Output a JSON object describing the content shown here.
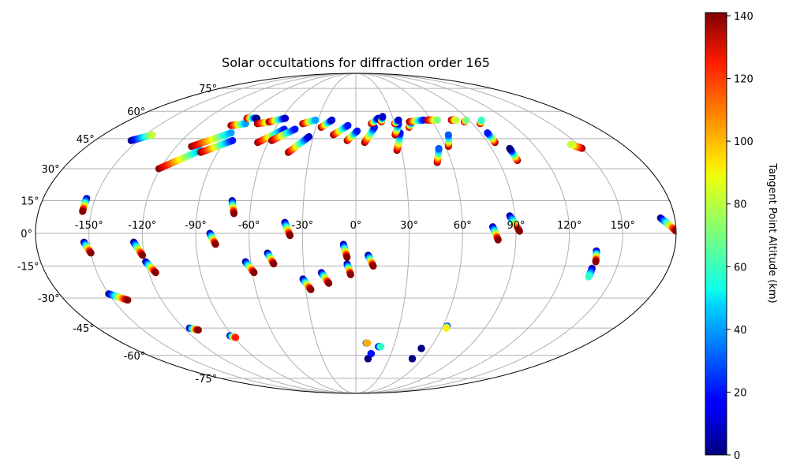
{
  "chart_data": {
    "type": "scatter",
    "projection": "mollweide",
    "title": "Solar occultations for diffraction order 165",
    "colorbar": {
      "label": "Tangent Point Altitude (km)",
      "range": [
        0,
        141
      ],
      "ticks": [
        "0",
        "20",
        "40",
        "60",
        "80",
        "100",
        "120",
        "140"
      ],
      "tick_values": [
        0,
        20,
        40,
        60,
        80,
        100,
        120,
        140
      ],
      "colormap": "jet"
    },
    "lon_ticks": [
      {
        "value": -150,
        "label": "-150°"
      },
      {
        "value": -120,
        "label": "-120°"
      },
      {
        "value": -90,
        "label": "-90°"
      },
      {
        "value": -60,
        "label": "-60°"
      },
      {
        "value": -30,
        "label": "-30°"
      },
      {
        "value": 0,
        "label": "0°"
      },
      {
        "value": 30,
        "label": "30°"
      },
      {
        "value": 60,
        "label": "60°"
      },
      {
        "value": 90,
        "label": "90°"
      },
      {
        "value": 120,
        "label": "120°"
      },
      {
        "value": 150,
        "label": "150°"
      }
    ],
    "lat_ticks": [
      {
        "value": 75,
        "label": "75°"
      },
      {
        "value": 60,
        "label": "60°"
      },
      {
        "value": 45,
        "label": "45°"
      },
      {
        "value": 30,
        "label": "30°"
      },
      {
        "value": 15,
        "label": "15°"
      },
      {
        "value": 0,
        "label": "0°"
      },
      {
        "value": -15,
        "label": "-15°"
      },
      {
        "value": -30,
        "label": "-30°"
      },
      {
        "value": -45,
        "label": "-45°"
      },
      {
        "value": -60,
        "label": "-60°"
      },
      {
        "value": -75,
        "label": "-75°"
      }
    ],
    "tracks": [
      {
        "start": [
          -155,
          44
        ],
        "end": [
          -145,
          47
        ],
        "alt": [
          0,
          80
        ]
      },
      {
        "start": [
          -121,
          30
        ],
        "end": [
          -102,
          39
        ],
        "alt": [
          140,
          40
        ]
      },
      {
        "start": [
          -110,
          41
        ],
        "end": [
          -90,
          48
        ],
        "alt": [
          140,
          40
        ]
      },
      {
        "start": [
          -101,
          38
        ],
        "end": [
          -85,
          44
        ],
        "alt": [
          140,
          20
        ]
      },
      {
        "start": [
          -95,
          52
        ],
        "end": [
          -85,
          53
        ],
        "alt": [
          140,
          40
        ]
      },
      {
        "start": [
          -88,
          56
        ],
        "end": [
          -80,
          56
        ],
        "alt": [
          140,
          0
        ]
      },
      {
        "start": [
          -76,
          53
        ],
        "end": [
          -67,
          54
        ],
        "alt": [
          140,
          70
        ]
      },
      {
        "start": [
          -68,
          54
        ],
        "end": [
          -57,
          56
        ],
        "alt": [
          140,
          10
        ]
      },
      {
        "start": [
          -67,
          43
        ],
        "end": [
          -53,
          50
        ],
        "alt": [
          140,
          20
        ]
      },
      {
        "start": [
          -58,
          44
        ],
        "end": [
          -45,
          50
        ],
        "alt": [
          140,
          20
        ]
      },
      {
        "start": [
          -44,
          38
        ],
        "end": [
          -33,
          46
        ],
        "alt": [
          140,
          10
        ]
      },
      {
        "start": [
          -41,
          53
        ],
        "end": [
          -32,
          55
        ],
        "alt": [
          140,
          40
        ]
      },
      {
        "start": [
          -26,
          51
        ],
        "end": [
          -19,
          55
        ],
        "alt": [
          140,
          10
        ]
      },
      {
        "start": [
          -16,
          47
        ],
        "end": [
          -6,
          52
        ],
        "alt": [
          140,
          20
        ]
      },
      {
        "start": [
          -6,
          44
        ],
        "end": [
          1,
          49
        ],
        "alt": [
          140,
          20
        ]
      },
      {
        "start": [
          6,
          43
        ],
        "end": [
          14,
          51
        ],
        "alt": [
          140,
          20
        ]
      },
      {
        "start": [
          12,
          53
        ],
        "end": [
          18,
          56
        ],
        "alt": [
          140,
          10
        ]
      },
      {
        "start": [
          20,
          54
        ],
        "end": [
          22,
          57
        ],
        "alt": [
          140,
          10
        ]
      },
      {
        "start": [
          27,
          39
        ],
        "end": [
          32,
          48
        ],
        "alt": [
          140,
          20
        ]
      },
      {
        "start": [
          28,
          47
        ],
        "end": [
          33,
          53
        ],
        "alt": [
          140,
          20
        ]
      },
      {
        "start": [
          30,
          53
        ],
        "end": [
          34,
          55
        ],
        "alt": [
          140,
          10
        ]
      },
      {
        "start": [
          40,
          51
        ],
        "end": [
          44,
          54
        ],
        "alt": [
          140,
          20
        ]
      },
      {
        "start": [
          42,
          54
        ],
        "end": [
          54,
          55
        ],
        "alt": [
          140,
          20
        ]
      },
      {
        "start": [
          57,
          55
        ],
        "end": [
          65,
          55
        ],
        "alt": [
          140,
          70
        ]
      },
      {
        "start": [
          51,
          33
        ],
        "end": [
          55,
          40
        ],
        "alt": [
          140,
          30
        ]
      },
      {
        "start": [
          62,
          41
        ],
        "end": [
          66,
          47
        ],
        "alt": [
          140,
          30
        ]
      },
      {
        "start": [
          76,
          55
        ],
        "end": [
          80,
          55
        ],
        "alt": [
          140,
          80
        ]
      },
      {
        "start": [
          85,
          54
        ],
        "end": [
          88,
          55
        ],
        "alt": [
          140,
          70
        ]
      },
      {
        "start": [
          96,
          53
        ],
        "end": [
          100,
          55
        ],
        "alt": [
          140,
          60
        ]
      },
      {
        "start": [
          95,
          43
        ],
        "end": [
          95,
          48
        ],
        "alt": [
          140,
          20
        ]
      },
      {
        "start": [
          102,
          34
        ],
        "end": [
          102,
          40
        ],
        "alt": [
          140,
          0
        ]
      },
      {
        "start": [
          150,
          40
        ],
        "end": [
          145,
          42
        ],
        "alt": [
          140,
          80
        ]
      },
      {
        "start": [
          -155,
          16
        ],
        "end": [
          -155,
          10
        ],
        "alt": [
          0,
          140
        ]
      },
      {
        "start": [
          -153,
          -4
        ],
        "end": [
          -150,
          -9
        ],
        "alt": [
          0,
          140
        ]
      },
      {
        "start": [
          -125,
          -4
        ],
        "end": [
          -121,
          -10
        ],
        "alt": [
          0,
          140
        ]
      },
      {
        "start": [
          -120,
          -13
        ],
        "end": [
          -116,
          -18
        ],
        "alt": [
          0,
          140
        ]
      },
      {
        "start": [
          -82,
          0
        ],
        "end": [
          -79,
          -5
        ],
        "alt": [
          0,
          140
        ]
      },
      {
        "start": [
          -71,
          15
        ],
        "end": [
          -69,
          9
        ],
        "alt": [
          0,
          140
        ]
      },
      {
        "start": [
          -63,
          -13
        ],
        "end": [
          -59,
          -18
        ],
        "alt": [
          0,
          140
        ]
      },
      {
        "start": [
          -50,
          -9
        ],
        "end": [
          -47,
          -14
        ],
        "alt": [
          0,
          140
        ]
      },
      {
        "start": [
          -40,
          5
        ],
        "end": [
          -37,
          -1
        ],
        "alt": [
          0,
          140
        ]
      },
      {
        "start": [
          -31,
          -21
        ],
        "end": [
          -27,
          -26
        ],
        "alt": [
          0,
          140
        ]
      },
      {
        "start": [
          -20,
          -18
        ],
        "end": [
          -16,
          -23
        ],
        "alt": [
          0,
          140
        ]
      },
      {
        "start": [
          -7,
          -5
        ],
        "end": [
          -5,
          -11
        ],
        "alt": [
          0,
          140
        ]
      },
      {
        "start": [
          -5,
          -14
        ],
        "end": [
          -3,
          -19
        ],
        "alt": [
          0,
          140
        ]
      },
      {
        "start": [
          7,
          -10
        ],
        "end": [
          10,
          -15
        ],
        "alt": [
          0,
          140
        ]
      },
      {
        "start": [
          87,
          8
        ],
        "end": [
          92,
          1
        ],
        "alt": [
          0,
          140
        ]
      },
      {
        "start": [
          77,
          3
        ],
        "end": [
          80,
          -3
        ],
        "alt": [
          0,
          140
        ]
      },
      {
        "start": [
          136,
          -8
        ],
        "end": [
          137,
          -13
        ],
        "alt": [
          0,
          140
        ]
      },
      {
        "start": [
          136,
          -16
        ],
        "end": [
          136,
          -20
        ],
        "alt": [
          0,
          60
        ]
      },
      {
        "start": [
          172,
          7
        ],
        "end": [
          180,
          1
        ],
        "alt": [
          0,
          140
        ]
      },
      {
        "start": [
          -150,
          -28
        ],
        "end": [
          -141,
          -31
        ],
        "alt": [
          0,
          140
        ]
      },
      {
        "start": [
          -116,
          -45
        ],
        "end": [
          -111,
          -46
        ],
        "alt": [
          0,
          140
        ]
      },
      {
        "start": [
          -92,
          -49
        ],
        "end": [
          -89,
          -50
        ],
        "alt": [
          0,
          120
        ]
      },
      {
        "start": [
          8,
          -53
        ],
        "end": [
          9,
          -53
        ],
        "alt": [
          0,
          100
        ]
      },
      {
        "start": [
          11,
          -62
        ],
        "end": [
          11,
          -62
        ],
        "alt": [
          0,
          0
        ]
      },
      {
        "start": [
          13,
          -59
        ],
        "end": [
          13,
          -59
        ],
        "alt": [
          0,
          20
        ]
      },
      {
        "start": [
          18,
          -55
        ],
        "end": [
          20,
          -55
        ],
        "alt": [
          0,
          60
        ]
      },
      {
        "start": [
          51,
          -62
        ],
        "end": [
          51,
          -62
        ],
        "alt": [
          0,
          0
        ]
      },
      {
        "start": [
          53,
          -56
        ],
        "end": [
          53,
          -56
        ],
        "alt": [
          0,
          0
        ]
      },
      {
        "start": [
          63,
          -44
        ],
        "end": [
          63,
          -45
        ],
        "alt": [
          0,
          90
        ]
      }
    ]
  }
}
